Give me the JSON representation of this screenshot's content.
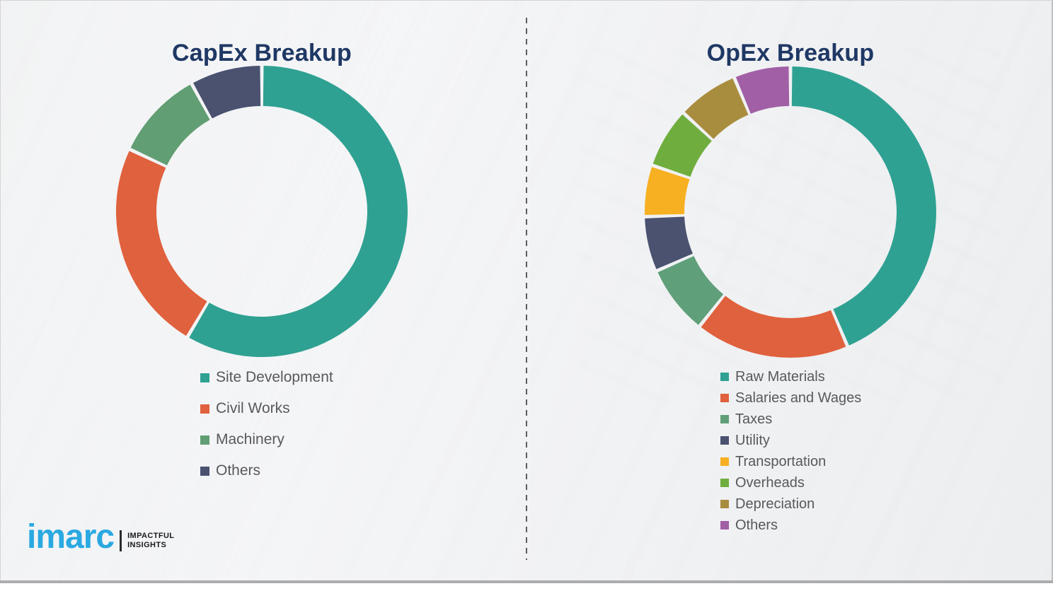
{
  "page": {
    "background": "#f1f2f4",
    "divider_color": "#5d5d60",
    "title_color": "#1f3864",
    "legend_text_color": "#595959"
  },
  "logo": {
    "brand": "imarc",
    "brand_color": "#2aa9e1",
    "tagline_line1": "IMPACTFUL",
    "tagline_line2": "INSIGHTS"
  },
  "chart_data": [
    {
      "type": "pie",
      "variant": "donut",
      "title": "CapEx Breakup",
      "labels": [
        "Site Development",
        "Civil Works",
        "Machinery",
        "Others"
      ],
      "values": [
        58.5,
        23.5,
        10,
        8
      ],
      "colors": [
        "#2fa192",
        "#e0613d",
        "#619e74",
        "#4a5270"
      ],
      "start_angle_deg": 0,
      "direction": "clockwise",
      "legend_position": "below-left",
      "outer_radius": 206,
      "inner_radius": 149
    },
    {
      "type": "pie",
      "variant": "donut",
      "title": "OpEx Breakup",
      "labels": [
        "Raw Materials",
        "Salaries and Wages",
        "Taxes",
        "Utility",
        "Transportation",
        "Overheads",
        "Depreciation",
        "Others"
      ],
      "values": [
        43.6,
        17.1,
        7.7,
        6.1,
        5.7,
        6.7,
        6.8,
        6.3
      ],
      "colors": [
        "#2fa192",
        "#e0613d",
        "#5f9f79",
        "#4a5270",
        "#f6b021",
        "#6fae3e",
        "#a98d3e",
        "#a15fa5"
      ],
      "start_angle_deg": 0,
      "direction": "clockwise",
      "legend_position": "below-left",
      "outer_radius": 206,
      "inner_radius": 150
    }
  ]
}
